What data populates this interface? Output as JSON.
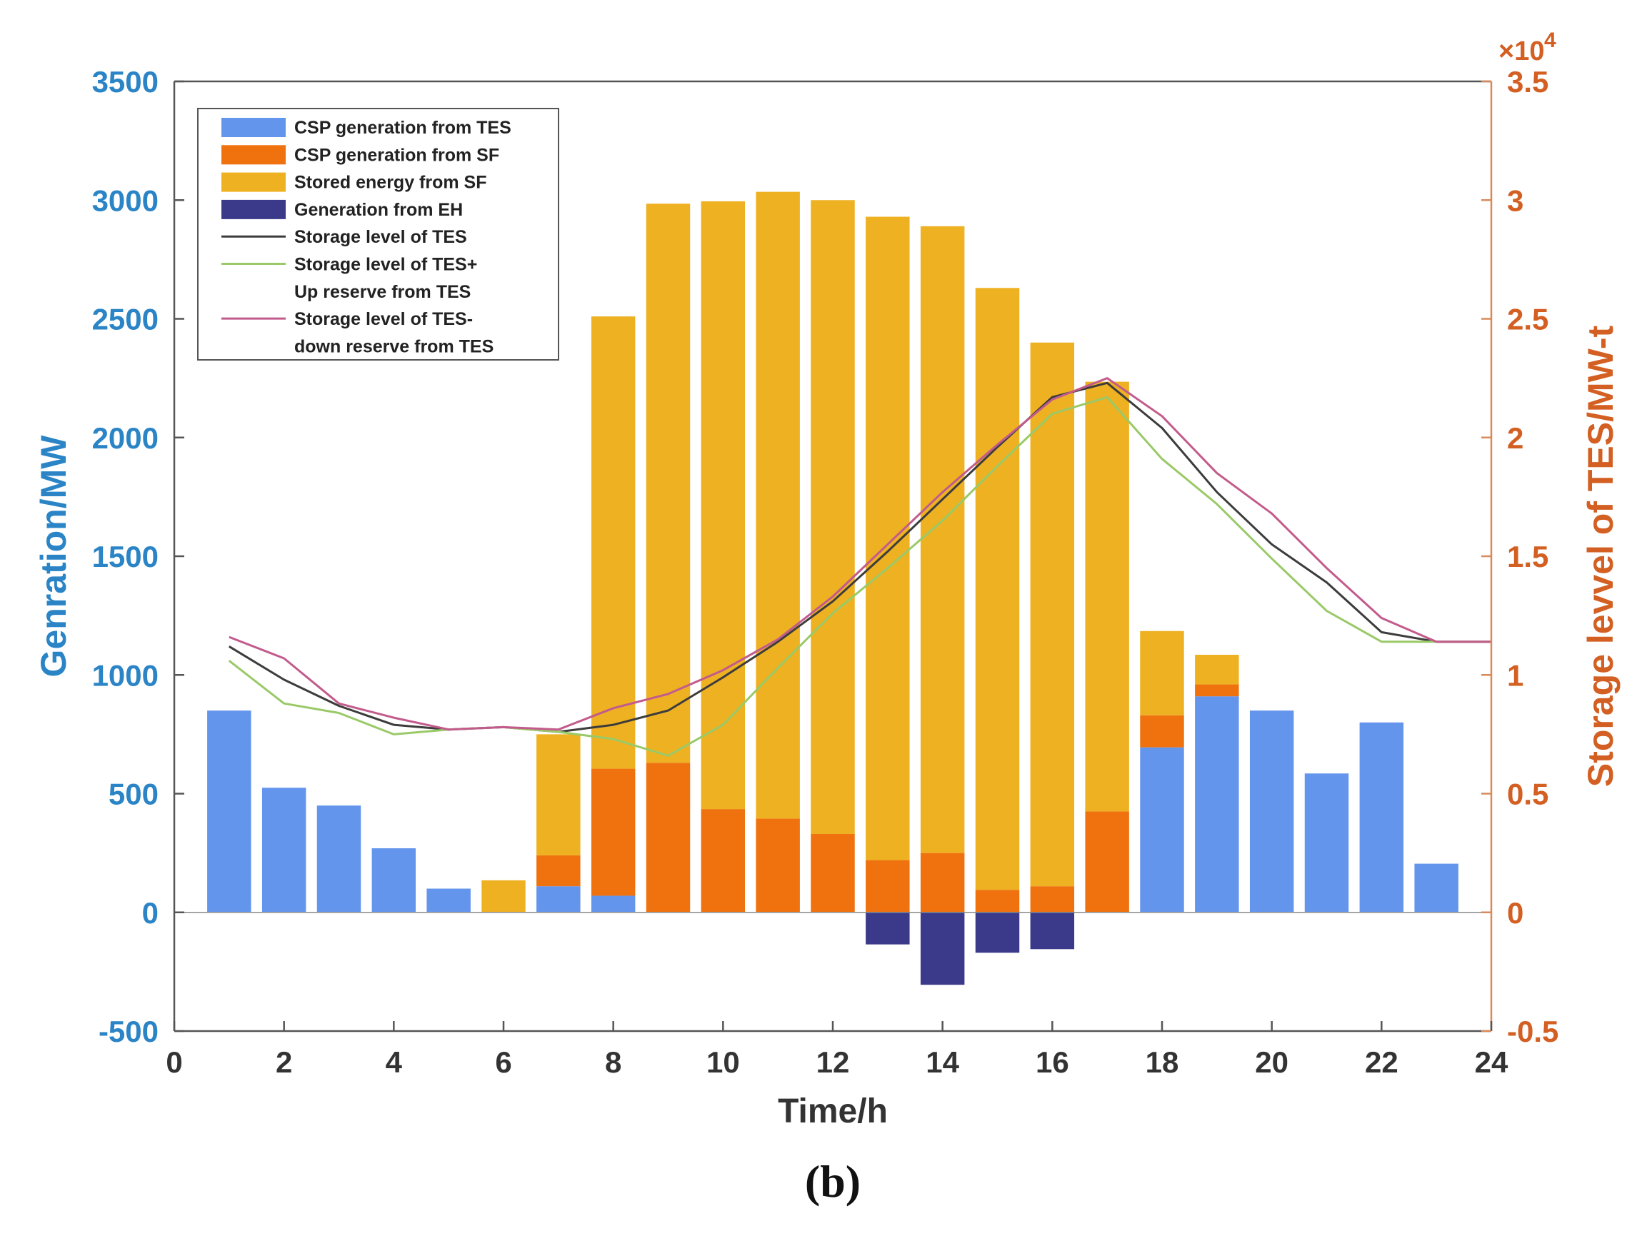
{
  "chart_data": {
    "type": "bar",
    "xlabel": "Time/h",
    "ylabel": "Genration/MW",
    "ylabel_right": "Storage levvel of TES/MW-t",
    "right_axis_exponent": "×10",
    "right_axis_exponent_power": "4",
    "caption": "(b)",
    "xlim": [
      0,
      24
    ],
    "ylim": [
      -500,
      3500
    ],
    "ylim_right": [
      -0.5,
      3.5
    ],
    "x_ticks": [
      "0",
      "2",
      "4",
      "6",
      "8",
      "10",
      "12",
      "14",
      "16",
      "18",
      "20",
      "22",
      "24"
    ],
    "y_ticks": [
      "3500",
      "3000",
      "2500",
      "2000",
      "1500",
      "1000",
      "500",
      "0",
      "-500"
    ],
    "y_ticks_right": [
      "3.5",
      "3",
      "2.5",
      "2",
      "1.5",
      "1",
      "0.5",
      "0",
      "-0.5"
    ],
    "hours": [
      1,
      2,
      3,
      4,
      5,
      6,
      7,
      8,
      9,
      10,
      11,
      12,
      13,
      14,
      15,
      16,
      17,
      18,
      19,
      20,
      21,
      22,
      23
    ],
    "legend_position": "top-left",
    "bar_series": [
      {
        "name": "CSP generation from TES",
        "color": "#6495ed",
        "values": [
          850,
          525,
          450,
          270,
          100,
          0,
          110,
          70,
          0,
          0,
          0,
          0,
          0,
          0,
          0,
          0,
          0,
          695,
          910,
          850,
          585,
          800,
          205
        ]
      },
      {
        "name": "CSP generation from SF",
        "color": "#ef720f",
        "values": [
          0,
          0,
          0,
          0,
          0,
          0,
          130,
          535,
          630,
          435,
          395,
          330,
          220,
          250,
          95,
          110,
          425,
          135,
          50,
          0,
          0,
          0,
          0
        ]
      },
      {
        "name": "Stored energy from SF",
        "color": "#eeb122",
        "values": [
          0,
          0,
          0,
          0,
          0,
          135,
          510,
          1905,
          2355,
          2560,
          2640,
          2670,
          2710,
          2640,
          2535,
          2290,
          1810,
          355,
          125,
          0,
          0,
          0,
          0
        ]
      },
      {
        "name": "Generation from EH",
        "color": "#3b3a8a",
        "values": [
          0,
          0,
          0,
          0,
          0,
          0,
          0,
          0,
          0,
          0,
          0,
          0,
          -135,
          -305,
          -170,
          -155,
          0,
          0,
          0,
          0,
          0,
          0,
          0
        ]
      }
    ],
    "line_series": [
      {
        "name": "Storage level of TES",
        "color": "#3c3c3c",
        "x": [
          1,
          2,
          3,
          4,
          5,
          6,
          7,
          8,
          9,
          10,
          11,
          12,
          13,
          14,
          15,
          16,
          17,
          18,
          19,
          20,
          21,
          22,
          23,
          24
        ],
        "values": [
          1.12,
          0.98,
          0.87,
          0.79,
          0.77,
          0.78,
          0.76,
          0.79,
          0.85,
          0.99,
          1.14,
          1.31,
          1.52,
          1.74,
          1.96,
          2.17,
          2.23,
          2.04,
          1.77,
          1.55,
          1.39,
          1.18,
          1.14,
          1.14
        ]
      },
      {
        "name": "Storage level of TES+ Up reserve from TES",
        "color": "#9ac968",
        "x": [
          1,
          2,
          3,
          4,
          5,
          6,
          7,
          8,
          9,
          10,
          11,
          12,
          13,
          14,
          15,
          16,
          17,
          18,
          19,
          20,
          21,
          22,
          23,
          24
        ],
        "values": [
          1.06,
          0.88,
          0.84,
          0.75,
          0.77,
          0.78,
          0.76,
          0.73,
          0.66,
          0.79,
          1.03,
          1.26,
          1.45,
          1.65,
          1.88,
          2.1,
          2.17,
          1.91,
          1.72,
          1.49,
          1.27,
          1.14,
          1.14,
          1.14
        ]
      },
      {
        "name": "Storage level of TES- down reserve from TES",
        "color": "#c25b8c",
        "x": [
          1,
          2,
          3,
          4,
          5,
          6,
          7,
          8,
          9,
          10,
          11,
          12,
          13,
          14,
          15,
          16,
          17,
          18,
          19,
          20,
          21,
          22,
          23,
          24
        ],
        "values": [
          1.16,
          1.07,
          0.88,
          0.82,
          0.77,
          0.78,
          0.77,
          0.86,
          0.92,
          1.02,
          1.15,
          1.33,
          1.55,
          1.77,
          1.97,
          2.16,
          2.25,
          2.09,
          1.85,
          1.68,
          1.45,
          1.24,
          1.14,
          1.14
        ]
      }
    ],
    "legend": [
      {
        "label": "CSP generation from TES",
        "kind": "patch",
        "color": "#6495ed"
      },
      {
        "label": "CSP generation from SF",
        "kind": "patch",
        "color": "#ef720f"
      },
      {
        "label": "Stored energy from SF",
        "kind": "patch",
        "color": "#eeb122"
      },
      {
        "label": "Generation from EH",
        "kind": "patch",
        "color": "#3b3a8a"
      },
      {
        "label": "Storage level of TES",
        "kind": "line",
        "color": "#3c3c3c"
      },
      {
        "label": "Storage level of TES+",
        "label2": "Up reserve from TES",
        "kind": "line",
        "color": "#9ac968"
      },
      {
        "label": "Storage level of TES-",
        "label2": "down reserve from TES",
        "kind": "line",
        "color": "#c25b8c"
      }
    ]
  }
}
